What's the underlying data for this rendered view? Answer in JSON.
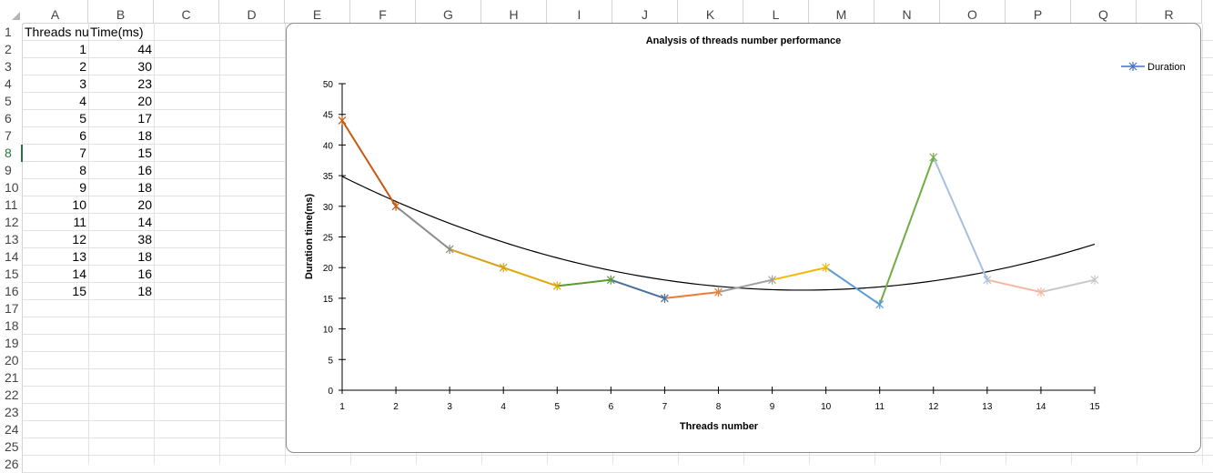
{
  "sheet": {
    "columns": [
      "A",
      "B",
      "C",
      "D",
      "E",
      "F",
      "G",
      "H",
      "I",
      "J",
      "K",
      "L",
      "M",
      "N",
      "O",
      "P",
      "Q",
      "R"
    ],
    "rows": [
      "1",
      "2",
      "3",
      "4",
      "5",
      "6",
      "7",
      "8",
      "9",
      "10",
      "11",
      "12",
      "13",
      "14",
      "15",
      "16",
      "17",
      "18",
      "19",
      "20",
      "21",
      "22",
      "23",
      "24",
      "25",
      "26"
    ],
    "active_row": "8",
    "header_row": {
      "a": "Threads nu",
      "b": "Time(ms)"
    },
    "data_rows": [
      {
        "a": "1",
        "b": "44"
      },
      {
        "a": "2",
        "b": "30"
      },
      {
        "a": "3",
        "b": "23"
      },
      {
        "a": "4",
        "b": "20"
      },
      {
        "a": "5",
        "b": "17"
      },
      {
        "a": "6",
        "b": "18"
      },
      {
        "a": "7",
        "b": "15"
      },
      {
        "a": "8",
        "b": "16"
      },
      {
        "a": "9",
        "b": "18"
      },
      {
        "a": "10",
        "b": "20"
      },
      {
        "a": "11",
        "b": "14"
      },
      {
        "a": "12",
        "b": "38"
      },
      {
        "a": "13",
        "b": "18"
      },
      {
        "a": "14",
        "b": "16"
      },
      {
        "a": "15",
        "b": "18"
      }
    ]
  },
  "chart_data": {
    "type": "line",
    "title": "Analysis of threads number performance",
    "xlabel": "Threads number",
    "ylabel": "Duration time(ms)",
    "x": [
      1,
      2,
      3,
      4,
      5,
      6,
      7,
      8,
      9,
      10,
      11,
      12,
      13,
      14,
      15
    ],
    "ylim": [
      0,
      50
    ],
    "yticks": [
      0,
      5,
      10,
      15,
      20,
      25,
      30,
      35,
      40,
      45,
      50
    ],
    "grid": false,
    "legend_position": "top-right",
    "series": [
      {
        "name": "Duration",
        "values": [
          44,
          30,
          23,
          20,
          17,
          18,
          15,
          16,
          18,
          20,
          14,
          38,
          18,
          16,
          18
        ],
        "marker": "star",
        "legend_color": "#4472c4"
      }
    ],
    "segment_colors": [
      "#c55a11",
      "#8c8c8c",
      "#d4a017",
      "#e0a800",
      "#5b9b32",
      "#4a6fa0",
      "#ed7d31",
      "#a0a0a0",
      "#f5b800",
      "#5b9bd5",
      "#70ad47",
      "#a9bfe0",
      "#f4b8a0",
      "#c8c8c8"
    ],
    "trendline": {
      "type": "polynomial",
      "order": 2,
      "color": "#000000"
    }
  }
}
